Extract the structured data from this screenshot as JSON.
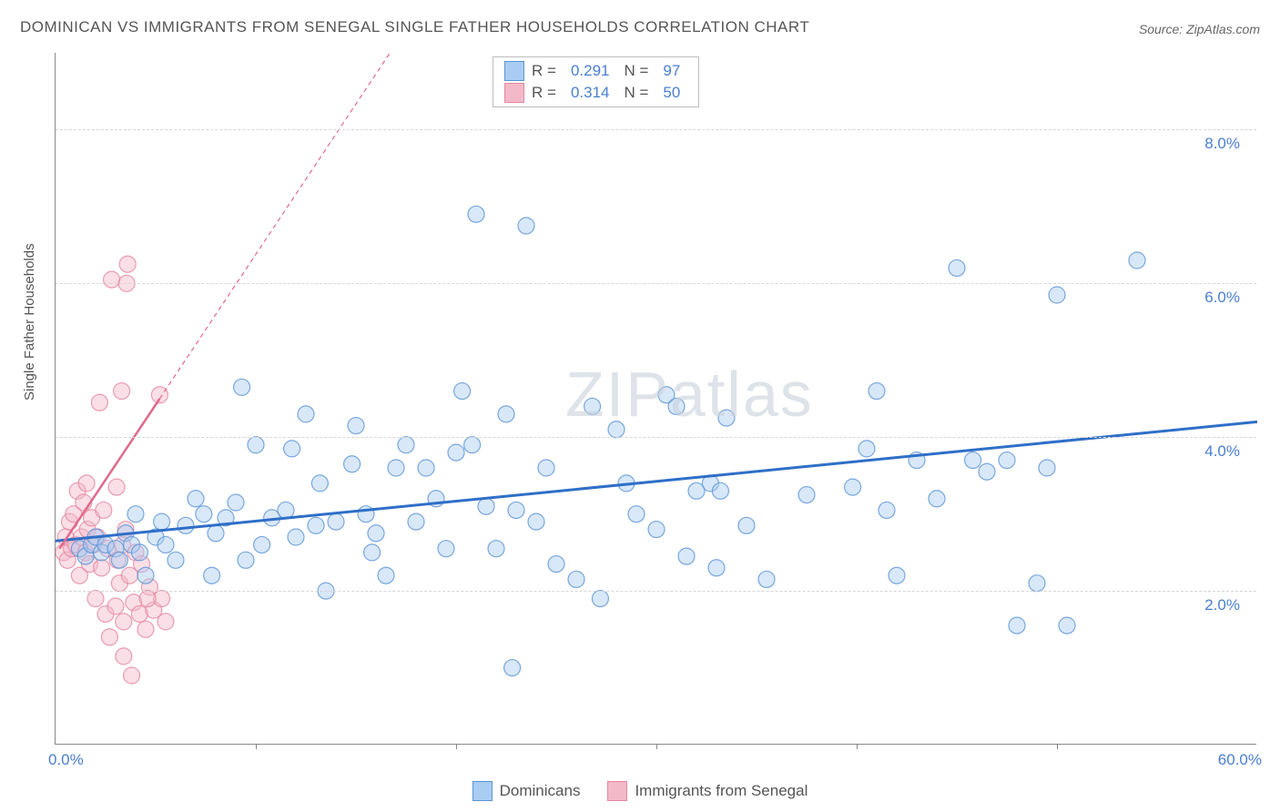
{
  "title": "DOMINICAN VS IMMIGRANTS FROM SENEGAL SINGLE FATHER HOUSEHOLDS CORRELATION CHART",
  "source": "Source: ZipAtlas.com",
  "ylabel": "Single Father Households",
  "watermark": "ZIPatlas",
  "chart": {
    "type": "scatter",
    "xlim": [
      0,
      60
    ],
    "ylim": [
      0,
      9
    ],
    "x_axis_start_label": "0.0%",
    "x_axis_end_label": "60.0%",
    "yticks": [
      2.0,
      4.0,
      6.0,
      8.0
    ],
    "ytick_labels": [
      "2.0%",
      "4.0%",
      "6.0%",
      "8.0%"
    ],
    "xticks": [
      10,
      20,
      30,
      40,
      50
    ],
    "background_color": "#ffffff",
    "grid_color": "#d6d6d6",
    "axis_color": "#888888",
    "label_color": "#4a7fd0",
    "title_color": "#555555",
    "marker_radius": 9,
    "marker_opacity": 0.45,
    "series": [
      {
        "name": "Dominicans",
        "fill_color": "#a9cdf2",
        "stroke_color": "#5b93d6",
        "trend_color": "#2f6fc7",
        "trend_width": 3,
        "trend_dash": "none",
        "R": 0.291,
        "N": 97,
        "trend": {
          "x1": 0,
          "y1": 2.65,
          "x2": 60,
          "y2": 4.2
        },
        "points": [
          [
            1.2,
            2.55
          ],
          [
            1.5,
            2.45
          ],
          [
            1.8,
            2.6
          ],
          [
            2.0,
            2.7
          ],
          [
            2.3,
            2.5
          ],
          [
            2.5,
            2.6
          ],
          [
            3.0,
            2.55
          ],
          [
            3.2,
            2.4
          ],
          [
            3.5,
            2.75
          ],
          [
            3.8,
            2.6
          ],
          [
            4.0,
            3.0
          ],
          [
            4.2,
            2.5
          ],
          [
            4.5,
            2.2
          ],
          [
            5.0,
            2.7
          ],
          [
            5.3,
            2.9
          ],
          [
            5.5,
            2.6
          ],
          [
            6.0,
            2.4
          ],
          [
            6.5,
            2.85
          ],
          [
            7.0,
            3.2
          ],
          [
            7.4,
            3.0
          ],
          [
            7.8,
            2.2
          ],
          [
            8.0,
            2.75
          ],
          [
            8.5,
            2.95
          ],
          [
            9.0,
            3.15
          ],
          [
            9.3,
            4.65
          ],
          [
            9.5,
            2.4
          ],
          [
            10.0,
            3.9
          ],
          [
            10.3,
            2.6
          ],
          [
            10.8,
            2.95
          ],
          [
            11.5,
            3.05
          ],
          [
            11.8,
            3.85
          ],
          [
            12.0,
            2.7
          ],
          [
            12.5,
            4.3
          ],
          [
            13.0,
            2.85
          ],
          [
            13.5,
            2.0
          ],
          [
            14.0,
            2.9
          ],
          [
            14.8,
            3.65
          ],
          [
            15.0,
            4.15
          ],
          [
            15.5,
            3.0
          ],
          [
            16.0,
            2.75
          ],
          [
            16.5,
            2.2
          ],
          [
            17.0,
            3.6
          ],
          [
            17.5,
            3.9
          ],
          [
            18.0,
            2.9
          ],
          [
            18.5,
            3.6
          ],
          [
            19.0,
            3.2
          ],
          [
            19.5,
            2.55
          ],
          [
            20.0,
            3.8
          ],
          [
            20.3,
            4.6
          ],
          [
            20.8,
            3.9
          ],
          [
            21.0,
            6.9
          ],
          [
            21.5,
            3.1
          ],
          [
            22.0,
            2.55
          ],
          [
            22.5,
            4.3
          ],
          [
            22.8,
            1.0
          ],
          [
            23.0,
            3.05
          ],
          [
            23.5,
            6.75
          ],
          [
            24.0,
            2.9
          ],
          [
            24.5,
            3.6
          ],
          [
            25.0,
            2.35
          ],
          [
            26.0,
            2.15
          ],
          [
            26.8,
            4.4
          ],
          [
            27.2,
            1.9
          ],
          [
            28.0,
            4.1
          ],
          [
            28.5,
            3.4
          ],
          [
            30.0,
            2.8
          ],
          [
            30.5,
            4.55
          ],
          [
            31.0,
            4.4
          ],
          [
            31.5,
            2.45
          ],
          [
            32.0,
            3.3
          ],
          [
            32.7,
            3.4
          ],
          [
            33.0,
            2.3
          ],
          [
            33.2,
            3.3
          ],
          [
            33.5,
            4.25
          ],
          [
            34.5,
            2.85
          ],
          [
            35.5,
            2.15
          ],
          [
            37.5,
            3.25
          ],
          [
            39.8,
            3.35
          ],
          [
            40.5,
            3.85
          ],
          [
            41.0,
            4.6
          ],
          [
            41.5,
            3.05
          ],
          [
            42.0,
            2.2
          ],
          [
            43.0,
            3.7
          ],
          [
            45.0,
            6.2
          ],
          [
            45.8,
            3.7
          ],
          [
            46.5,
            3.55
          ],
          [
            47.5,
            3.7
          ],
          [
            48.0,
            1.55
          ],
          [
            49.0,
            2.1
          ],
          [
            49.5,
            3.6
          ],
          [
            50.0,
            5.85
          ],
          [
            50.5,
            1.55
          ],
          [
            54.0,
            6.3
          ],
          [
            44.0,
            3.2
          ],
          [
            15.8,
            2.5
          ],
          [
            13.2,
            3.4
          ],
          [
            29.0,
            3.0
          ]
        ]
      },
      {
        "name": "Immigrants from Senegal",
        "fill_color": "#f3b9c9",
        "stroke_color": "#e3879f",
        "trend_color": "#e06a8b",
        "trend_width": 2.5,
        "trend_dash": "none",
        "trend_dash_extended": "5,4",
        "R": 0.314,
        "N": 50,
        "trend": {
          "x1": 0.2,
          "y1": 2.55,
          "x2": 5.2,
          "y2": 4.5
        },
        "trend_ext": {
          "x1": 5.2,
          "y1": 4.5,
          "x2": 19.0,
          "y2": 9.9
        },
        "points": [
          [
            0.4,
            2.5
          ],
          [
            0.5,
            2.7
          ],
          [
            0.6,
            2.4
          ],
          [
            0.7,
            2.9
          ],
          [
            0.8,
            2.55
          ],
          [
            0.9,
            3.0
          ],
          [
            1.0,
            2.6
          ],
          [
            1.1,
            3.3
          ],
          [
            1.2,
            2.2
          ],
          [
            1.3,
            2.7
          ],
          [
            1.4,
            3.15
          ],
          [
            1.5,
            2.5
          ],
          [
            1.55,
            3.4
          ],
          [
            1.6,
            2.8
          ],
          [
            1.7,
            2.35
          ],
          [
            1.8,
            2.95
          ],
          [
            1.9,
            2.6
          ],
          [
            2.0,
            1.9
          ],
          [
            2.1,
            2.7
          ],
          [
            2.2,
            4.45
          ],
          [
            2.3,
            2.3
          ],
          [
            2.4,
            3.05
          ],
          [
            2.5,
            1.7
          ],
          [
            2.6,
            2.55
          ],
          [
            2.8,
            6.05
          ],
          [
            3.0,
            1.8
          ],
          [
            3.05,
            3.35
          ],
          [
            3.1,
            2.4
          ],
          [
            3.2,
            2.1
          ],
          [
            3.3,
            4.6
          ],
          [
            3.35,
            2.6
          ],
          [
            3.4,
            1.6
          ],
          [
            3.5,
            2.8
          ],
          [
            3.55,
            6.0
          ],
          [
            3.6,
            6.25
          ],
          [
            3.7,
            2.2
          ],
          [
            3.9,
            1.85
          ],
          [
            4.0,
            2.5
          ],
          [
            4.2,
            1.7
          ],
          [
            4.3,
            2.35
          ],
          [
            4.5,
            1.5
          ],
          [
            4.7,
            2.05
          ],
          [
            4.9,
            1.75
          ],
          [
            5.2,
            4.55
          ],
          [
            5.3,
            1.9
          ],
          [
            5.5,
            1.6
          ],
          [
            3.4,
            1.15
          ],
          [
            3.8,
            0.9
          ],
          [
            2.7,
            1.4
          ],
          [
            4.6,
            1.9
          ]
        ]
      }
    ]
  },
  "legend_top": {
    "rows": [
      {
        "r_label": "R =",
        "r": "0.291",
        "n_label": "N =",
        "n": "97"
      },
      {
        "r_label": "R =",
        "r": "0.314",
        "n_label": "N =",
        "n": "50"
      }
    ]
  },
  "legend_bottom": [
    "Dominicans",
    "Immigrants from Senegal"
  ]
}
